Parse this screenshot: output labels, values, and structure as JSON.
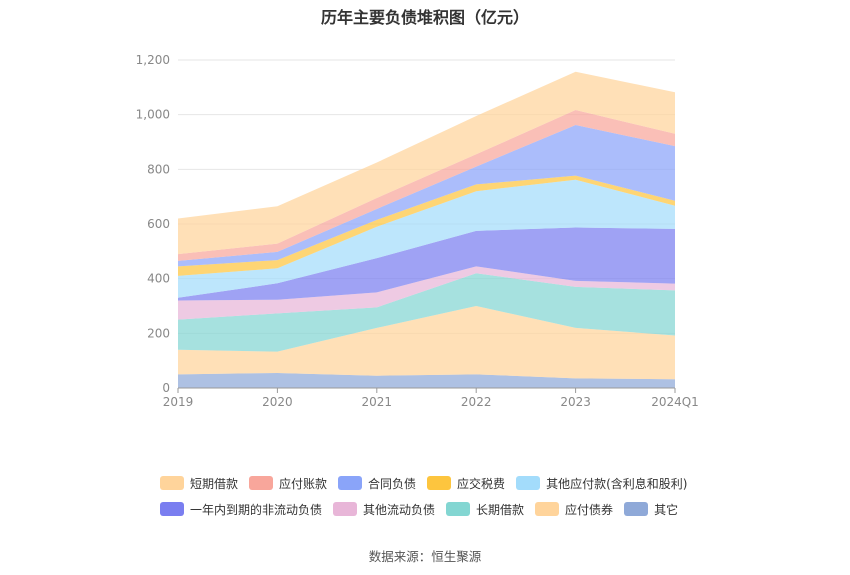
{
  "chart_data": {
    "type": "area",
    "stacked": true,
    "title": "历年主要负债堆积图（亿元）",
    "x": [
      "2019",
      "2020",
      "2021",
      "2022",
      "2023",
      "2024Q1"
    ],
    "y_ticks": [
      "0",
      "200",
      "400",
      "600",
      "800",
      "1,000",
      "1,200"
    ],
    "ylim": [
      0,
      1200
    ],
    "grid": true,
    "legend_position": "bottom",
    "series": [
      {
        "name": "其它",
        "color": "#8fa9d8",
        "values": [
          50,
          55,
          45,
          50,
          35,
          32
        ]
      },
      {
        "name": "应付债券",
        "color": "#ffd49b",
        "values": [
          90,
          78,
          175,
          250,
          185,
          160
        ]
      },
      {
        "name": "长期借款",
        "color": "#83d6d2",
        "values": [
          110,
          140,
          75,
          120,
          150,
          165
        ]
      },
      {
        "name": "其他流动负债",
        "color": "#e8b6d8",
        "values": [
          70,
          50,
          55,
          25,
          22,
          25
        ]
      },
      {
        "name": "一年内到期的非流动负债",
        "color": "#7a7ef0",
        "values": [
          10,
          60,
          125,
          130,
          195,
          200
        ]
      },
      {
        "name": "其他应付款(含利息和股利)",
        "color": "#a3dcfb",
        "values": [
          80,
          55,
          115,
          145,
          175,
          85
        ]
      },
      {
        "name": "应交税费",
        "color": "#fdc53e",
        "values": [
          35,
          30,
          25,
          25,
          15,
          18
        ]
      },
      {
        "name": "合同负债",
        "color": "#8aa4f9",
        "values": [
          20,
          30,
          40,
          65,
          185,
          200
        ]
      },
      {
        "name": "应付账款",
        "color": "#f8a69b",
        "values": [
          25,
          30,
          40,
          45,
          55,
          45
        ]
      },
      {
        "name": "短期借款",
        "color": "#ffd49b",
        "values": [
          130,
          137,
          130,
          140,
          140,
          152
        ]
      }
    ],
    "source": "数据来源：恒生聚源"
  },
  "legend_rows": [
    [
      "短期借款",
      "应付账款",
      "合同负债",
      "应交税费",
      "其他应付款(含利息和股利)"
    ],
    [
      "一年内到期的非流动负债",
      "其他流动负债",
      "长期借款",
      "应付债券",
      "其它"
    ]
  ]
}
